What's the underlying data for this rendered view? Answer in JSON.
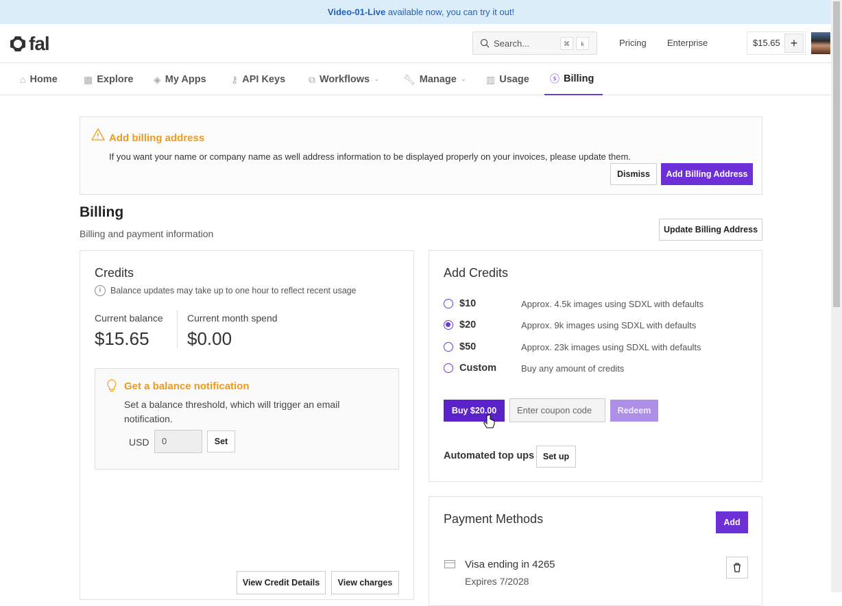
{
  "banner": {
    "highlight": "Video-01-Live",
    "text": " available now, you can try it out!"
  },
  "header": {
    "logo": "fal",
    "search_placeholder": "Search...",
    "kbd1": "⌘",
    "kbd2": "k",
    "pricing": "Pricing",
    "enterprise": "Enterprise",
    "balance": "$15.65",
    "add": "+"
  },
  "nav": [
    {
      "label": "Home",
      "icon": "home-icon"
    },
    {
      "label": "Explore",
      "icon": "grid-icon"
    },
    {
      "label": "My Apps",
      "icon": "layers-icon"
    },
    {
      "label": "API Keys",
      "icon": "key-icon"
    },
    {
      "label": "Workflows",
      "icon": "workflow-icon"
    },
    {
      "label": "Manage",
      "icon": "wrench-icon"
    },
    {
      "label": "Usage",
      "icon": "chart-icon"
    },
    {
      "label": "Billing",
      "icon": "dollar-icon"
    }
  ],
  "alert": {
    "title": "Add billing address",
    "text": "If you want your name or company name as well address information to be displayed properly on your invoices, please update them.",
    "dismiss": "Dismiss",
    "add": "Add Billing Address"
  },
  "page": {
    "title": "Billing",
    "subtitle": "Billing and payment information",
    "update": "Update Billing Address"
  },
  "credits": {
    "title": "Credits",
    "note": "Balance updates may take up to one hour to reflect recent usage",
    "balance_label": "Current balance",
    "balance": "$15.65",
    "spend_label": "Current month spend",
    "spend": "$0.00",
    "notif": {
      "title": "Get a balance notification",
      "text": "Set a balance threshold, which will trigger an email notification.",
      "currency": "USD",
      "value": "0",
      "set": "Set"
    },
    "view_details": "View Credit Details",
    "view_charges": "View charges"
  },
  "add_credits": {
    "title": "Add Credits",
    "options": [
      {
        "label": "$10",
        "desc": "Approx. 4.5k images using SDXL with defaults",
        "selected": false
      },
      {
        "label": "$20",
        "desc": "Approx. 9k images using SDXL with defaults",
        "selected": true
      },
      {
        "label": "$50",
        "desc": "Approx. 23k images using SDXL with defaults",
        "selected": false
      },
      {
        "label": "Custom",
        "desc": "Buy any amount of credits",
        "selected": false
      }
    ],
    "buy": "Buy $20.00",
    "coupon_placeholder": "Enter coupon code",
    "redeem": "Redeem",
    "auto_label": "Automated top ups",
    "setup": "Set up"
  },
  "payment": {
    "title": "Payment Methods",
    "add": "Add",
    "card": "Visa ending in 4265",
    "expires": "Expires 7/2028"
  }
}
